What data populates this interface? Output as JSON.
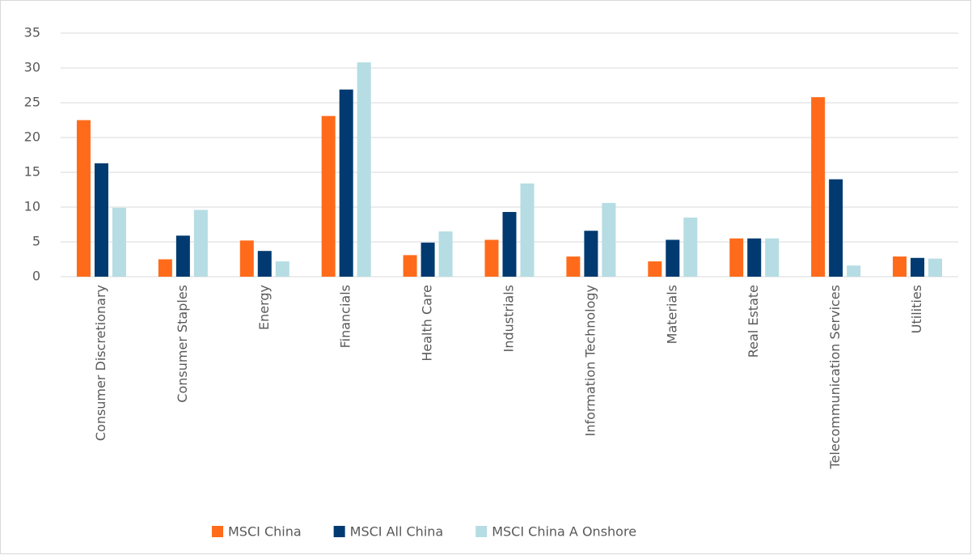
{
  "chart_data": {
    "type": "bar",
    "categories": [
      "Consumer Discretionary",
      "Consumer Staples",
      "Energy",
      "Financials",
      "Health Care",
      "Industrials",
      "Information Technology",
      "Materials",
      "Real Estate",
      "Telecommunication Services",
      "Utilities"
    ],
    "series": [
      {
        "name": "MSCI China",
        "color": "#ff6b1a",
        "values": [
          22.5,
          2.5,
          5.2,
          23.1,
          3.1,
          5.3,
          2.9,
          2.2,
          5.5,
          25.8,
          2.9
        ]
      },
      {
        "name": "MSCI All China",
        "color": "#003a70",
        "values": [
          16.3,
          5.9,
          3.7,
          26.9,
          4.9,
          9.3,
          6.6,
          5.3,
          5.5,
          14.0,
          2.7
        ]
      },
      {
        "name": "MSCI China A Onshore",
        "color": "#b5dde3",
        "values": [
          9.9,
          9.6,
          2.2,
          30.8,
          6.5,
          13.4,
          10.6,
          8.5,
          5.5,
          1.6,
          2.6
        ]
      }
    ],
    "ylim": [
      0,
      35
    ],
    "yticks": [
      0,
      5,
      10,
      15,
      20,
      25,
      30,
      35
    ],
    "grid": true,
    "legend": "bottom"
  }
}
